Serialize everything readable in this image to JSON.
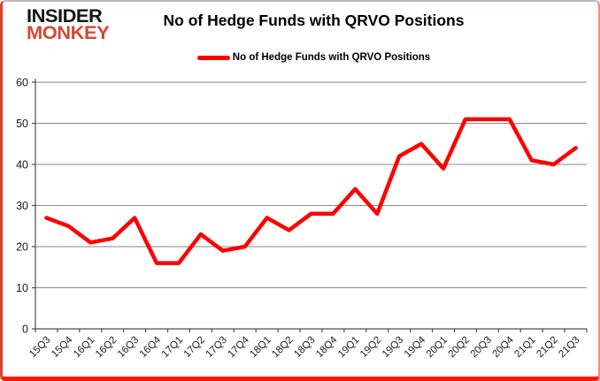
{
  "logo": {
    "line1": "INSIDER",
    "line2": "MONKEY"
  },
  "title": "No of Hedge Funds with QRVO Positions",
  "legend": {
    "label": "No of Hedge Funds with QRVO Positions",
    "marker": "red-line"
  },
  "colors": {
    "series_line": "#fe0000",
    "logo_insider": "#141414",
    "logo_monkey": "#d14a32",
    "gridline": "#8a8a8a",
    "axis": "#4d4d4d",
    "tick_label": "#1a1a1a",
    "frame_red": "#ff170c"
  },
  "chart_data": {
    "type": "line",
    "title": "No of Hedge Funds with QRVO Positions",
    "categories": [
      "15Q3",
      "15Q4",
      "16Q1",
      "16Q2",
      "16Q3",
      "16Q4",
      "17Q1",
      "17Q2",
      "17Q3",
      "17Q4",
      "18Q1",
      "18Q2",
      "18Q3",
      "18Q4",
      "19Q1",
      "19Q2",
      "19Q3",
      "19Q4",
      "20Q1",
      "20Q2",
      "20Q3",
      "20Q4",
      "21Q1",
      "21Q2",
      "21Q3"
    ],
    "series": [
      {
        "name": "No of Hedge Funds with QRVO Positions",
        "values": [
          27,
          25,
          21,
          22,
          27,
          16,
          16,
          23,
          19,
          20,
          27,
          24,
          28,
          28,
          34,
          28,
          42,
          45,
          39,
          51,
          51,
          51,
          41,
          40,
          44
        ]
      }
    ],
    "xlabel": "",
    "ylabel": "",
    "ylim": [
      0,
      60
    ],
    "yticks": [
      0,
      10,
      20,
      30,
      40,
      50,
      60
    ],
    "grid": "horizontal",
    "legend_position": "top-center"
  }
}
